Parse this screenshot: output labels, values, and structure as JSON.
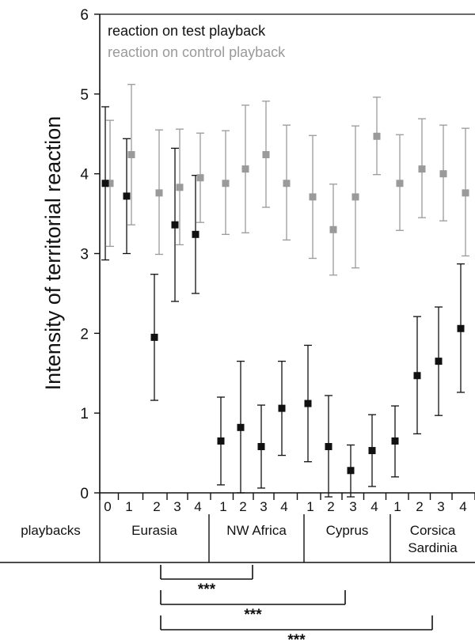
{
  "chart_data": {
    "type": "scatter",
    "title": "",
    "xlabel": "playbacks",
    "ylabel": "Intensity of territorial reaction",
    "ylim": [
      0,
      6
    ],
    "y_ticks": [
      "0",
      "1",
      "2",
      "3",
      "4",
      "5",
      "6"
    ],
    "legend_placement": "top-left",
    "groups": [
      {
        "name": "Eurasia",
        "ticks": [
          "0",
          "1",
          "2",
          "3",
          "4"
        ]
      },
      {
        "name": "NW Africa",
        "ticks": [
          "1",
          "2",
          "3",
          "4"
        ]
      },
      {
        "name": "Cyprus",
        "ticks": [
          "1",
          "2",
          "3",
          "4"
        ]
      },
      {
        "name": "Corsica Sardinia",
        "name_lines": [
          "Corsica",
          "Sardinia"
        ],
        "ticks": [
          "1",
          "2",
          "3",
          "4"
        ]
      }
    ],
    "series": [
      {
        "name": "reaction on test playback",
        "color": "#111111",
        "points": [
          {
            "group": "Eurasia",
            "x": "0",
            "y": 3.88,
            "err_low": 2.92,
            "err_high": 4.84
          },
          {
            "group": "Eurasia",
            "x": "1",
            "y": 3.72,
            "err_low": 3.0,
            "err_high": 4.44
          },
          {
            "group": "Eurasia",
            "x": "2",
            "y": 1.95,
            "err_low": 1.16,
            "err_high": 2.74
          },
          {
            "group": "Eurasia",
            "x": "3",
            "y": 3.36,
            "err_low": 2.4,
            "err_high": 4.32
          },
          {
            "group": "Eurasia",
            "x": "4",
            "y": 3.24,
            "err_low": 2.5,
            "err_high": 3.98
          },
          {
            "group": "NW Africa",
            "x": "1",
            "y": 0.65,
            "err_low": 0.1,
            "err_high": 1.2
          },
          {
            "group": "NW Africa",
            "x": "2",
            "y": 0.82,
            "err_low": 0.0,
            "err_high": 1.65
          },
          {
            "group": "NW Africa",
            "x": "3",
            "y": 0.58,
            "err_low": 0.06,
            "err_high": 1.1
          },
          {
            "group": "NW Africa",
            "x": "4",
            "y": 1.06,
            "err_low": 0.47,
            "err_high": 1.65
          },
          {
            "group": "Cyprus",
            "x": "1",
            "y": 1.12,
            "err_low": 0.39,
            "err_high": 1.85
          },
          {
            "group": "Cyprus",
            "x": "2",
            "y": 0.58,
            "err_low": -0.05,
            "err_high": 1.22
          },
          {
            "group": "Cyprus",
            "x": "3",
            "y": 0.28,
            "err_low": -0.05,
            "err_high": 0.6
          },
          {
            "group": "Cyprus",
            "x": "4",
            "y": 0.53,
            "err_low": 0.08,
            "err_high": 0.98
          },
          {
            "group": "Corsica Sardinia",
            "x": "1",
            "y": 0.65,
            "err_low": 0.2,
            "err_high": 1.09
          },
          {
            "group": "Corsica Sardinia",
            "x": "2",
            "y": 1.47,
            "err_low": 0.74,
            "err_high": 2.21
          },
          {
            "group": "Corsica Sardinia",
            "x": "3",
            "y": 1.65,
            "err_low": 0.97,
            "err_high": 2.33
          },
          {
            "group": "Corsica Sardinia",
            "x": "4",
            "y": 2.06,
            "err_low": 1.26,
            "err_high": 2.87
          }
        ]
      },
      {
        "name": "reaction on control playback",
        "color": "#9a9a9a",
        "points": [
          {
            "group": "Eurasia",
            "x": "0",
            "y": 3.88,
            "err_low": 3.09,
            "err_high": 4.67
          },
          {
            "group": "Eurasia",
            "x": "1",
            "y": 4.24,
            "err_low": 3.36,
            "err_high": 5.12
          },
          {
            "group": "Eurasia",
            "x": "2",
            "y": 3.76,
            "err_low": 2.99,
            "err_high": 4.55
          },
          {
            "group": "Eurasia",
            "x": "3",
            "y": 3.83,
            "err_low": 3.11,
            "err_high": 4.56
          },
          {
            "group": "Eurasia",
            "x": "4",
            "y": 3.95,
            "err_low": 3.39,
            "err_high": 4.51
          },
          {
            "group": "NW Africa",
            "x": "1",
            "y": 3.88,
            "err_low": 3.24,
            "err_high": 4.54
          },
          {
            "group": "NW Africa",
            "x": "2",
            "y": 4.06,
            "err_low": 3.26,
            "err_high": 4.86
          },
          {
            "group": "NW Africa",
            "x": "3",
            "y": 4.24,
            "err_low": 3.58,
            "err_high": 4.91
          },
          {
            "group": "NW Africa",
            "x": "4",
            "y": 3.88,
            "err_low": 3.17,
            "err_high": 4.61
          },
          {
            "group": "Cyprus",
            "x": "1",
            "y": 3.71,
            "err_low": 2.94,
            "err_high": 4.48
          },
          {
            "group": "Cyprus",
            "x": "2",
            "y": 3.3,
            "err_low": 2.73,
            "err_high": 3.87
          },
          {
            "group": "Cyprus",
            "x": "3",
            "y": 3.71,
            "err_low": 2.82,
            "err_high": 4.6
          },
          {
            "group": "Cyprus",
            "x": "4",
            "y": 4.47,
            "err_low": 3.99,
            "err_high": 4.96
          },
          {
            "group": "Corsica Sardinia",
            "x": "1",
            "y": 3.88,
            "err_low": 3.29,
            "err_high": 4.49
          },
          {
            "group": "Corsica Sardinia",
            "x": "2",
            "y": 4.06,
            "err_low": 3.45,
            "err_high": 4.69
          },
          {
            "group": "Corsica Sardinia",
            "x": "3",
            "y": 4.0,
            "err_low": 3.41,
            "err_high": 4.61
          },
          {
            "group": "Corsica Sardinia",
            "x": "4",
            "y": 3.76,
            "err_low": 2.97,
            "err_high": 4.57
          }
        ]
      }
    ],
    "comparisons": [
      {
        "from": "Eurasia 2",
        "to": "NW Africa 2",
        "label": "***"
      },
      {
        "from": "Eurasia 2",
        "to": "Cyprus 3",
        "label": "***"
      },
      {
        "from": "Eurasia 2",
        "to": "Corsica Sardinia 3",
        "label": "***"
      }
    ]
  }
}
